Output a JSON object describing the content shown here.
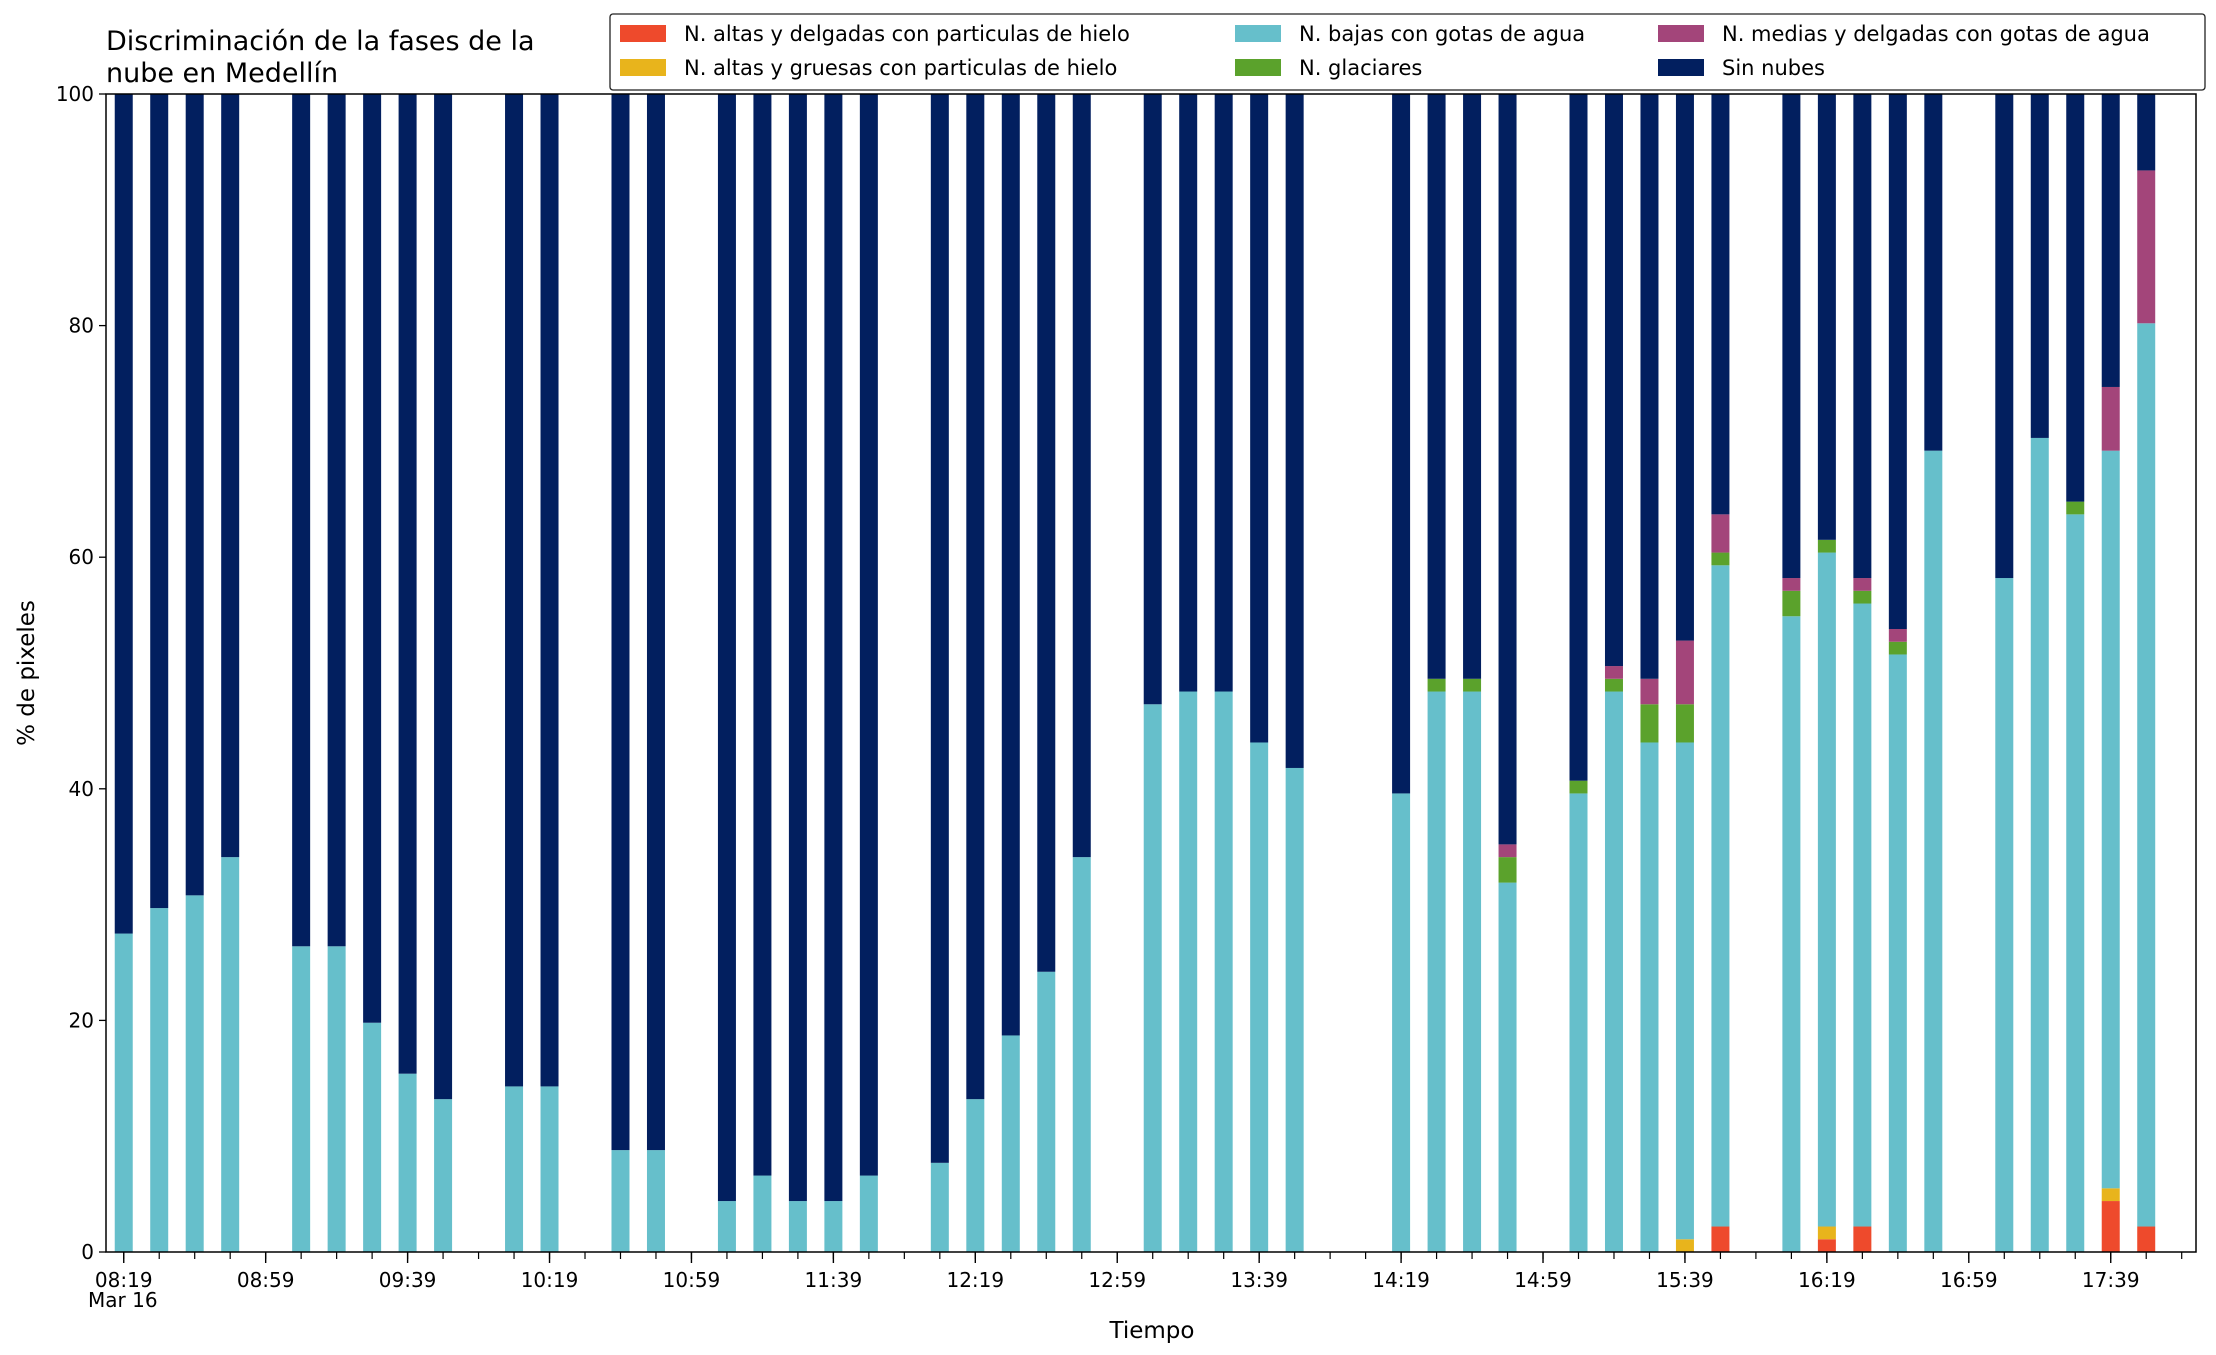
{
  "chart_data": {
    "type": "bar",
    "stacked": true,
    "title_lines": [
      "Discriminación de la fases de la",
      "nube en Medellín"
    ],
    "xlabel": "Tiempo",
    "ylabel": "% de pixeles",
    "ylim": [
      0,
      100
    ],
    "yticks": [
      "0",
      "20",
      "40",
      "60",
      "80",
      "100"
    ],
    "grid": false,
    "legend_position": "top-right",
    "x_tick_labels": [
      "08:19",
      "08:59",
      "09:39",
      "10:19",
      "10:59",
      "11:39",
      "12:19",
      "12:59",
      "13:39",
      "14:19",
      "14:59",
      "15:39",
      "16:19",
      "16:59",
      "17:39"
    ],
    "x_sublabel": "Mar 16",
    "x": [
      "08:19",
      "08:29",
      "08:39",
      "08:49",
      "09:09",
      "09:19",
      "09:29",
      "09:39",
      "09:49",
      "10:09",
      "10:19",
      "10:39",
      "10:49",
      "11:09",
      "11:19",
      "11:29",
      "11:39",
      "11:49",
      "12:09",
      "12:19",
      "12:29",
      "12:39",
      "12:49",
      "13:09",
      "13:19",
      "13:29",
      "13:39",
      "13:49",
      "14:19",
      "14:29",
      "14:39",
      "14:49",
      "15:09",
      "15:19",
      "15:29",
      "15:39",
      "15:49",
      "16:09",
      "16:19",
      "16:29",
      "16:39",
      "16:49",
      "17:09",
      "17:19",
      "17:29",
      "17:39",
      "17:49"
    ],
    "series": [
      {
        "name": "N. altas y delgadas con particulas de hielo",
        "color": "#ee4a2c",
        "values": [
          0,
          0,
          0,
          0,
          0,
          0,
          0,
          0,
          0,
          0,
          0,
          0,
          0,
          0,
          0,
          0,
          0,
          0,
          0,
          0,
          0,
          0,
          0,
          0,
          0,
          0,
          0,
          0,
          0,
          0,
          0,
          0,
          0,
          0,
          0,
          0,
          2.2,
          0,
          1.1,
          2.2,
          0,
          0,
          0,
          0,
          0,
          4.4,
          2.2
        ]
      },
      {
        "name": "N. altas y gruesas con particulas de hielo",
        "color": "#e8b41c",
        "values": [
          0,
          0,
          0,
          0,
          0,
          0,
          0,
          0,
          0,
          0,
          0,
          0,
          0,
          0,
          0,
          0,
          0,
          0,
          0,
          0,
          0,
          0,
          0,
          0,
          0,
          0,
          0,
          0,
          0,
          0,
          0,
          0,
          0,
          0,
          0,
          1.1,
          0,
          0,
          1.1,
          0,
          0,
          0,
          0,
          0,
          0,
          1.1,
          0
        ]
      },
      {
        "name": "N. bajas con gotas de agua",
        "color": "#66bfcb",
        "values": [
          27.5,
          29.7,
          30.8,
          34.1,
          26.4,
          26.4,
          19.8,
          15.4,
          13.2,
          14.3,
          14.3,
          8.8,
          8.8,
          4.4,
          6.6,
          4.4,
          4.4,
          6.6,
          7.7,
          13.2,
          18.7,
          24.2,
          34.1,
          47.3,
          48.4,
          48.4,
          44.0,
          41.8,
          39.6,
          48.4,
          48.4,
          31.9,
          39.6,
          48.4,
          44.0,
          42.9,
          57.1,
          54.9,
          58.2,
          53.8,
          51.6,
          69.2,
          58.2,
          70.3,
          63.7,
          63.7,
          78.0
        ]
      },
      {
        "name": "N. glaciares",
        "color": "#5ba22c",
        "values": [
          0,
          0,
          0,
          0,
          0,
          0,
          0,
          0,
          0,
          0,
          0,
          0,
          0,
          0,
          0,
          0,
          0,
          0,
          0,
          0,
          0,
          0,
          0,
          0,
          0,
          0,
          0,
          0,
          0,
          1.1,
          1.1,
          2.2,
          1.1,
          1.1,
          3.3,
          3.3,
          1.1,
          2.2,
          1.1,
          1.1,
          1.1,
          0,
          0,
          0,
          1.1,
          0,
          0
        ]
      },
      {
        "name": "N. medias y delgadas con gotas de agua",
        "color": "#a3457a",
        "values": [
          0,
          0,
          0,
          0,
          0,
          0,
          0,
          0,
          0,
          0,
          0,
          0,
          0,
          0,
          0,
          0,
          0,
          0,
          0,
          0,
          0,
          0,
          0,
          0,
          0,
          0,
          0,
          0,
          0,
          0,
          0,
          1.1,
          0,
          1.1,
          2.2,
          5.5,
          3.3,
          1.1,
          0,
          1.1,
          1.1,
          0,
          0,
          0,
          0,
          5.5,
          13.2
        ]
      },
      {
        "name": "Sin nubes",
        "color": "#021f5f",
        "values": [
          72.5,
          70.3,
          69.2,
          65.9,
          73.6,
          73.6,
          80.2,
          84.6,
          86.8,
          85.7,
          85.7,
          91.2,
          91.2,
          95.6,
          93.4,
          95.6,
          95.6,
          93.4,
          92.3,
          86.8,
          81.3,
          75.8,
          65.9,
          52.7,
          51.6,
          51.6,
          56.0,
          58.2,
          60.4,
          50.5,
          50.5,
          64.8,
          59.3,
          49.4,
          50.5,
          47.2,
          36.3,
          41.8,
          38.5,
          41.8,
          46.2,
          30.8,
          41.8,
          29.7,
          35.2,
          25.3,
          6.6
        ]
      }
    ]
  }
}
